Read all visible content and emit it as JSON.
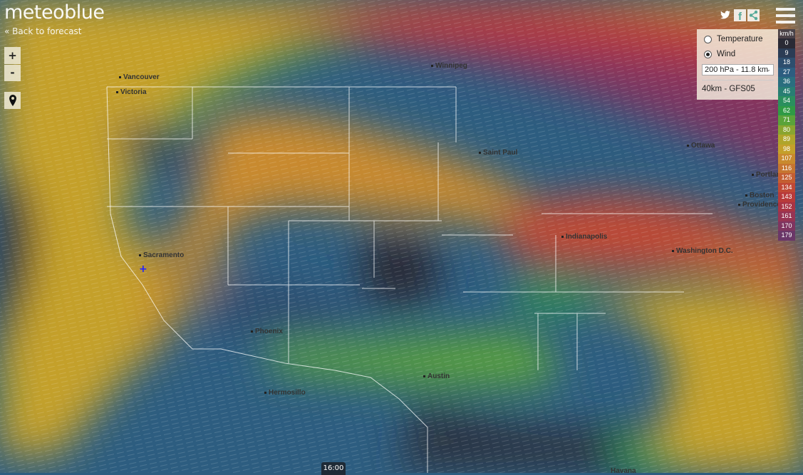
{
  "header": {
    "logo": "meteoblue",
    "back_label": "Back to forecast"
  },
  "controls": {
    "zoom_in": "+",
    "zoom_out": "-",
    "locate_icon": "map-pin-icon"
  },
  "social": {
    "icons": [
      "twitter-icon",
      "facebook-icon",
      "share-icon",
      "menu-icon"
    ]
  },
  "panel": {
    "options": [
      {
        "label": "Temperature",
        "selected": false
      },
      {
        "label": "Wind",
        "selected": true
      }
    ],
    "level_select": "200 hPa - 11.8 km",
    "model": "40km - GFS05"
  },
  "legend": {
    "unit": "km/h",
    "values": [
      "0",
      "9",
      "18",
      "27",
      "36",
      "45",
      "54",
      "62",
      "71",
      "80",
      "89",
      "98",
      "107",
      "116",
      "125",
      "134",
      "143",
      "152",
      "161",
      "170",
      "179"
    ],
    "colors": [
      "#2a2a35",
      "#2b3c55",
      "#2e4e6e",
      "#2d5d80",
      "#2a6e7f",
      "#287e73",
      "#2a8f5e",
      "#2f9a45",
      "#5aa33a",
      "#8aa530",
      "#b0a52a",
      "#c4a02a",
      "#c98a2e",
      "#c67530",
      "#c45e32",
      "#c04835",
      "#b83a3a",
      "#a83445",
      "#963454",
      "#7f3560",
      "#6a3768"
    ]
  },
  "cities": [
    "Vancouver",
    "Victoria",
    "Winnipeg",
    "Saint Paul",
    "Ottawa",
    "Portland",
    "Boston",
    "Providence",
    "Indianapolis",
    "Washington D.C.",
    "Sacramento",
    "Phoenix",
    "Austin",
    "Hermosillo",
    "Havana"
  ],
  "timeline": {
    "time": "16:00"
  }
}
